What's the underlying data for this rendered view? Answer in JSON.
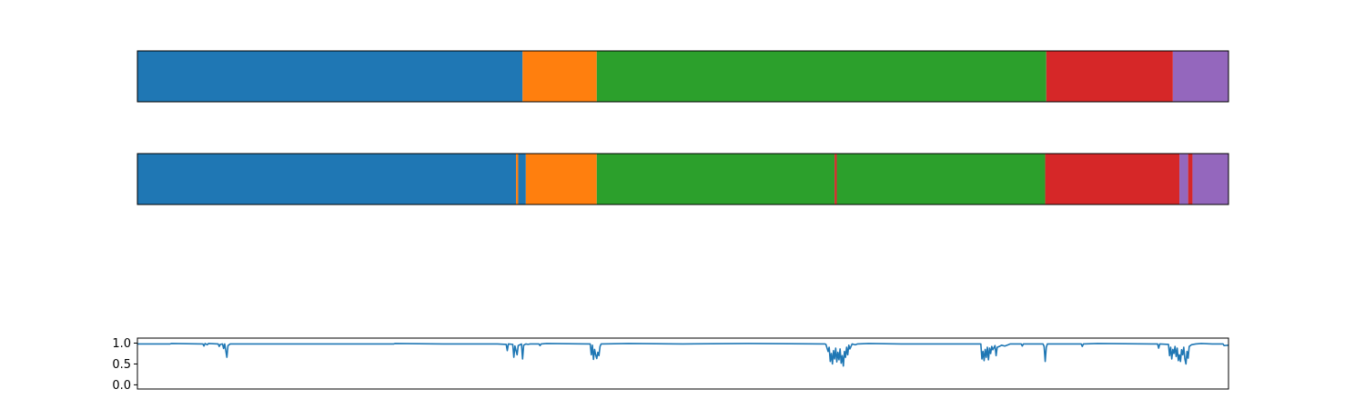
{
  "chart_data": [
    {
      "type": "bar",
      "orientation": "horizontal-segments",
      "title": "",
      "xlim": [
        0,
        1.0
      ],
      "segments": [
        {
          "start": 0.0,
          "end": 0.353,
          "color": "#1f77b4"
        },
        {
          "start": 0.353,
          "end": 0.421,
          "color": "#ff7f0e"
        },
        {
          "start": 0.421,
          "end": 0.833,
          "color": "#2ca02c"
        },
        {
          "start": 0.833,
          "end": 0.949,
          "color": "#d62728"
        },
        {
          "start": 0.949,
          "end": 1.0,
          "color": "#9467bd"
        }
      ]
    },
    {
      "type": "bar",
      "orientation": "horizontal-segments",
      "title": "",
      "xlim": [
        0,
        1.0
      ],
      "segments": [
        {
          "start": 0.0,
          "end": 0.347,
          "color": "#1f77b4"
        },
        {
          "start": 0.347,
          "end": 0.349,
          "color": "#ff7f0e"
        },
        {
          "start": 0.349,
          "end": 0.356,
          "color": "#1f77b4"
        },
        {
          "start": 0.356,
          "end": 0.421,
          "color": "#ff7f0e"
        },
        {
          "start": 0.421,
          "end": 0.639,
          "color": "#2ca02c"
        },
        {
          "start": 0.639,
          "end": 0.641,
          "color": "#d62728"
        },
        {
          "start": 0.641,
          "end": 0.832,
          "color": "#2ca02c"
        },
        {
          "start": 0.832,
          "end": 0.955,
          "color": "#d62728"
        },
        {
          "start": 0.955,
          "end": 0.963,
          "color": "#9467bd"
        },
        {
          "start": 0.963,
          "end": 0.967,
          "color": "#d62728"
        },
        {
          "start": 0.967,
          "end": 1.0,
          "color": "#9467bd"
        }
      ]
    },
    {
      "type": "line",
      "title": "",
      "xlabel": "",
      "ylabel": "",
      "ylim": [
        -0.1,
        1.12
      ],
      "xlim": [
        0,
        1.0
      ],
      "yticks": [
        0.0,
        0.5,
        1.0
      ],
      "ytick_labels": [
        "0.0",
        "0.5",
        "1.0"
      ],
      "series": [
        {
          "color": "#1f77b4",
          "points": [
            [
              0.0,
              0.98
            ],
            [
              0.03,
              0.98
            ],
            [
              0.031,
              0.99
            ],
            [
              0.06,
              0.98
            ],
            [
              0.061,
              0.93
            ],
            [
              0.062,
              0.99
            ],
            [
              0.064,
              0.96
            ],
            [
              0.065,
              0.99
            ],
            [
              0.074,
              0.98
            ],
            [
              0.075,
              0.92
            ],
            [
              0.076,
              0.97
            ],
            [
              0.078,
              0.98
            ],
            [
              0.079,
              0.87
            ],
            [
              0.08,
              0.98
            ],
            [
              0.082,
              0.66
            ],
            [
              0.083,
              0.94
            ],
            [
              0.085,
              0.98
            ],
            [
              0.235,
              0.98
            ],
            [
              0.236,
              0.99
            ],
            [
              0.28,
              0.98
            ],
            [
              0.33,
              0.98
            ],
            [
              0.338,
              0.97
            ],
            [
              0.339,
              0.82
            ],
            [
              0.34,
              0.98
            ],
            [
              0.344,
              0.97
            ],
            [
              0.345,
              0.66
            ],
            [
              0.346,
              0.93
            ],
            [
              0.348,
              0.72
            ],
            [
              0.349,
              0.94
            ],
            [
              0.352,
              0.98
            ],
            [
              0.353,
              0.62
            ],
            [
              0.354,
              0.95
            ],
            [
              0.356,
              0.98
            ],
            [
              0.358,
              0.97
            ],
            [
              0.36,
              0.98
            ],
            [
              0.368,
              0.98
            ],
            [
              0.369,
              0.94
            ],
            [
              0.37,
              0.98
            ],
            [
              0.375,
              0.99
            ],
            [
              0.415,
              0.98
            ],
            [
              0.416,
              0.72
            ],
            [
              0.417,
              0.95
            ],
            [
              0.418,
              0.61
            ],
            [
              0.419,
              0.85
            ],
            [
              0.42,
              0.72
            ],
            [
              0.421,
              0.63
            ],
            [
              0.422,
              0.78
            ],
            [
              0.423,
              0.7
            ],
            [
              0.424,
              0.92
            ],
            [
              0.425,
              0.98
            ],
            [
              0.45,
              0.99
            ],
            [
              0.5,
              0.98
            ],
            [
              0.56,
              0.99
            ],
            [
              0.63,
              0.98
            ],
            [
              0.631,
              0.97
            ],
            [
              0.633,
              0.8
            ],
            [
              0.634,
              0.9
            ],
            [
              0.635,
              0.56
            ],
            [
              0.636,
              0.75
            ],
            [
              0.637,
              0.5
            ],
            [
              0.638,
              0.82
            ],
            [
              0.639,
              0.62
            ],
            [
              0.64,
              0.88
            ],
            [
              0.641,
              0.55
            ],
            [
              0.642,
              0.78
            ],
            [
              0.643,
              0.6
            ],
            [
              0.644,
              0.86
            ],
            [
              0.645,
              0.52
            ],
            [
              0.646,
              0.7
            ],
            [
              0.647,
              0.45
            ],
            [
              0.648,
              0.8
            ],
            [
              0.649,
              0.66
            ],
            [
              0.65,
              0.9
            ],
            [
              0.651,
              0.72
            ],
            [
              0.652,
              0.95
            ],
            [
              0.653,
              0.86
            ],
            [
              0.655,
              0.98
            ],
            [
              0.658,
              0.96
            ],
            [
              0.66,
              0.98
            ],
            [
              0.67,
              0.99
            ],
            [
              0.7,
              0.98
            ],
            [
              0.75,
              0.98
            ],
            [
              0.773,
              0.98
            ],
            [
              0.774,
              0.62
            ],
            [
              0.775,
              0.8
            ],
            [
              0.776,
              0.58
            ],
            [
              0.777,
              0.85
            ],
            [
              0.778,
              0.66
            ],
            [
              0.779,
              0.9
            ],
            [
              0.78,
              0.6
            ],
            [
              0.781,
              0.88
            ],
            [
              0.782,
              0.75
            ],
            [
              0.783,
              0.92
            ],
            [
              0.784,
              0.84
            ],
            [
              0.786,
              0.94
            ],
            [
              0.787,
              0.7
            ],
            [
              0.788,
              0.9
            ],
            [
              0.79,
              0.92
            ],
            [
              0.792,
              0.95
            ],
            [
              0.795,
              0.93
            ],
            [
              0.798,
              0.96
            ],
            [
              0.8,
              0.98
            ],
            [
              0.81,
              0.98
            ],
            [
              0.811,
              0.93
            ],
            [
              0.812,
              0.98
            ],
            [
              0.83,
              0.98
            ],
            [
              0.831,
              0.92
            ],
            [
              0.832,
              0.56
            ],
            [
              0.833,
              0.9
            ],
            [
              0.834,
              0.98
            ],
            [
              0.85,
              0.98
            ],
            [
              0.865,
              0.98
            ],
            [
              0.866,
              0.92
            ],
            [
              0.867,
              0.98
            ],
            [
              0.88,
              0.99
            ],
            [
              0.93,
              0.98
            ],
            [
              0.935,
              0.98
            ],
            [
              0.936,
              0.88
            ],
            [
              0.937,
              0.98
            ],
            [
              0.945,
              0.97
            ],
            [
              0.946,
              0.7
            ],
            [
              0.947,
              0.9
            ],
            [
              0.948,
              0.62
            ],
            [
              0.949,
              0.85
            ],
            [
              0.95,
              0.75
            ],
            [
              0.951,
              0.92
            ],
            [
              0.952,
              0.68
            ],
            [
              0.953,
              0.88
            ],
            [
              0.954,
              0.58
            ],
            [
              0.955,
              0.72
            ],
            [
              0.956,
              0.56
            ],
            [
              0.957,
              0.84
            ],
            [
              0.958,
              0.72
            ],
            [
              0.959,
              0.9
            ],
            [
              0.96,
              0.62
            ],
            [
              0.961,
              0.5
            ],
            [
              0.962,
              0.8
            ],
            [
              0.963,
              0.64
            ],
            [
              0.964,
              0.92
            ],
            [
              0.966,
              0.96
            ],
            [
              0.97,
              0.98
            ],
            [
              0.975,
              0.99
            ],
            [
              0.985,
              0.98
            ],
            [
              0.995,
              0.98
            ],
            [
              0.996,
              0.94
            ],
            [
              1.0,
              0.95
            ]
          ]
        }
      ]
    }
  ]
}
